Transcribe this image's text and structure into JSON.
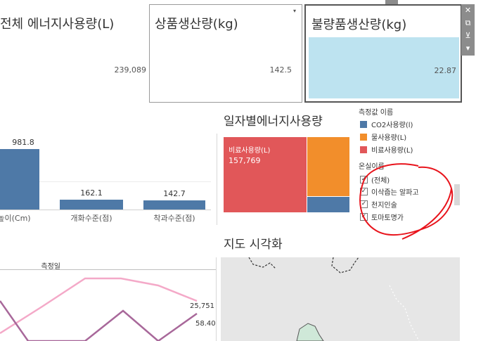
{
  "kpis": {
    "energy": {
      "title": "전체 에너지사용량(L)",
      "value": "239,089"
    },
    "product": {
      "title": "상품생산량(kg)",
      "value": "142.5"
    },
    "defect": {
      "title": "불량품생산량(kg)",
      "value": "22.87"
    }
  },
  "toolbar": {
    "close": "✕",
    "open": "⧉",
    "filter": "⊻",
    "more": "▾"
  },
  "product_menu_icon": "▾",
  "bar_chart": {
    "chart_data": {
      "type": "bar",
      "categories": [
        "높이(Cm)",
        "개화수준(점)",
        "착과수준(점)"
      ],
      "values": [
        981.8,
        162.1,
        142.7
      ],
      "value_labels": [
        "981.8",
        "162.1",
        "142.7"
      ],
      "bar_color": "#4e79a7"
    }
  },
  "daily_energy": {
    "title": "일자별에너지사용량",
    "chart_data": {
      "type": "treemap",
      "items": [
        {
          "name": "비료사용량(L)",
          "value": 157769,
          "label": "비료사용량(L)",
          "value_label": "157,769",
          "color": "#e15759"
        },
        {
          "name": "물사용량(L)",
          "color": "#f28e2b"
        },
        {
          "name": "CO2사용량(l)",
          "color": "#4e79a7"
        }
      ]
    }
  },
  "legend": {
    "title": "측정값 이름",
    "items": [
      {
        "label": "CO2사용량(l)",
        "color": "#4e79a7"
      },
      {
        "label": "물사용량(L)",
        "color": "#f28e2b"
      },
      {
        "label": "비료사용량(L)",
        "color": "#e15759"
      }
    ]
  },
  "greenhouse_filter": {
    "title": "온실이름",
    "items": [
      {
        "label": "(전체)",
        "checked": true
      },
      {
        "label": "이삭줍는 알파고",
        "checked": true
      },
      {
        "label": "천지인술",
        "checked": true
      },
      {
        "label": "토마토명가",
        "checked": true
      }
    ]
  },
  "line_chart": {
    "header": "측정일",
    "chart_data": {
      "type": "line",
      "series": [
        {
          "color": "#f4a9c8",
          "end_label": "25,751"
        },
        {
          "color": "#a8689a",
          "end_label": "58.40"
        }
      ]
    }
  },
  "map": {
    "title": "지도 시각화"
  },
  "colors": {
    "annotation": "#e8141c",
    "map_region": "#cfe8d8"
  }
}
